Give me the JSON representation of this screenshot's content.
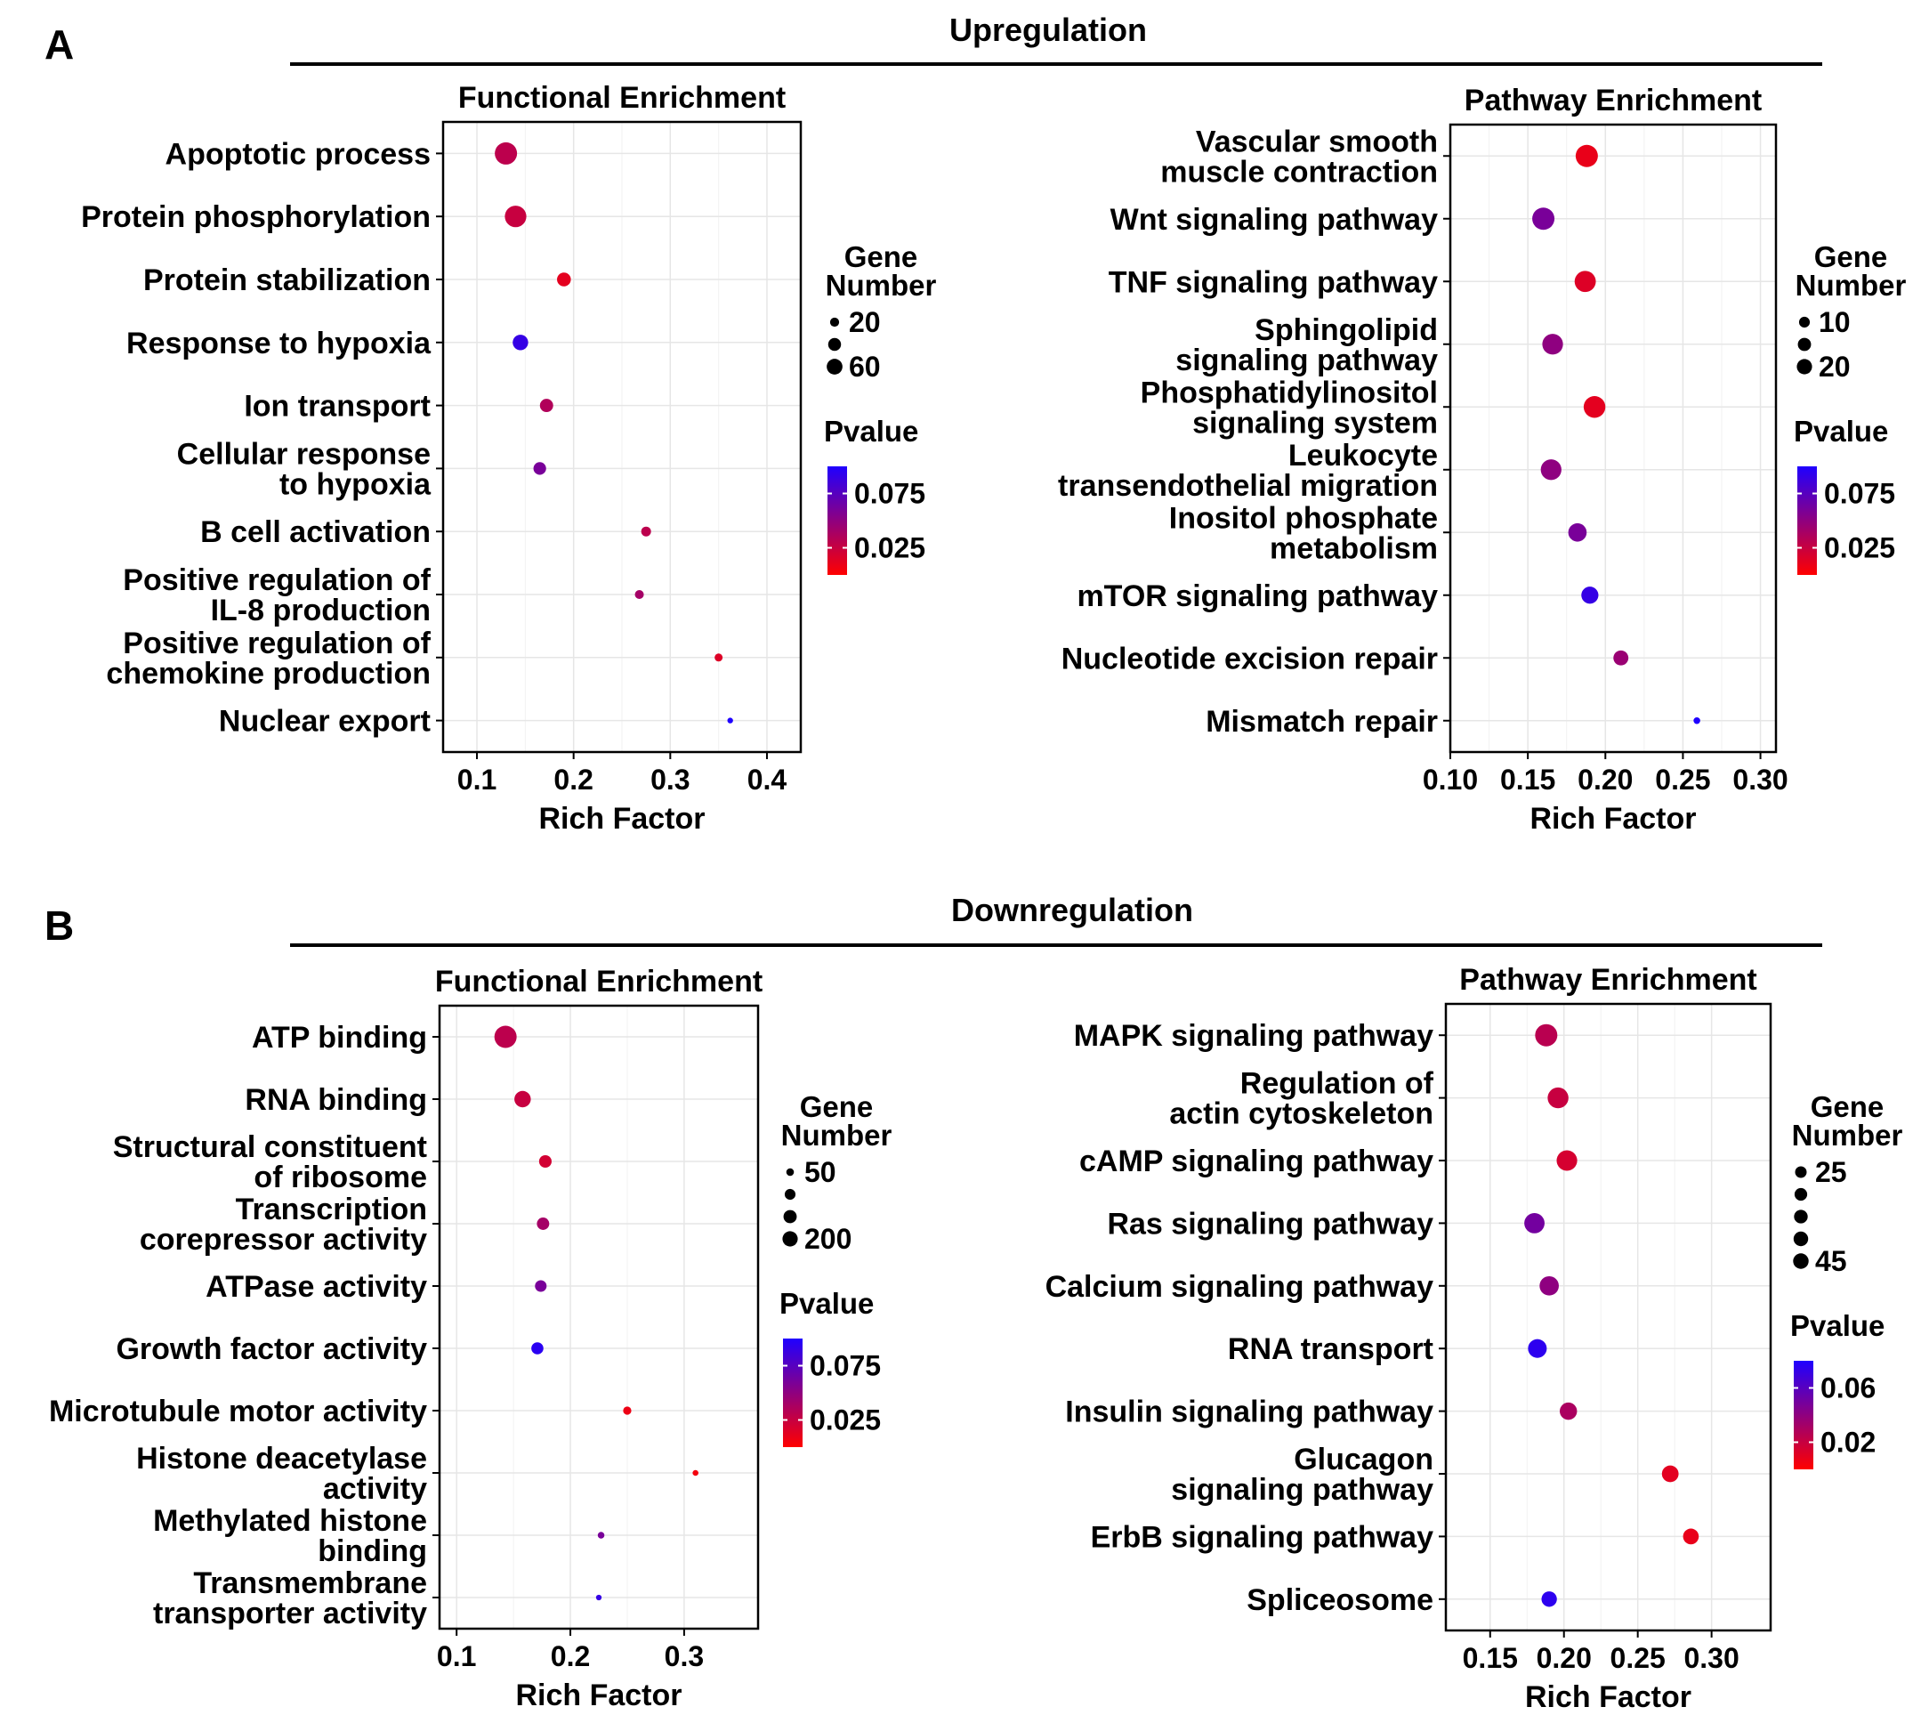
{
  "sections": [
    {
      "letter": "A",
      "title": "Upregulation",
      "panels": [
        {
          "id": "up-functional",
          "chart_data": {
            "type": "scatter",
            "title": "Functional Enrichment",
            "xlabel": "Rich Factor",
            "xlim": [
              0.065,
              0.435
            ],
            "xticks": [
              0.1,
              0.2,
              0.3,
              0.4
            ],
            "xtick_labels": [
              "0.1",
              "0.2",
              "0.3",
              "0.4"
            ],
            "categories": [
              [
                "Apoptotic process"
              ],
              [
                "Protein phosphorylation"
              ],
              [
                "Protein stabilization"
              ],
              [
                "Response to hypoxia"
              ],
              [
                "Ion transport"
              ],
              [
                "Cellular response",
                "to hypoxia"
              ],
              [
                "B cell activation"
              ],
              [
                "Positive regulation of",
                "IL-8 production"
              ],
              [
                "Positive regulation of",
                "chemokine production"
              ],
              [
                "Nuclear export"
              ]
            ],
            "rich_factor": [
              0.13,
              0.14,
              0.19,
              0.145,
              0.172,
              0.165,
              0.275,
              0.268,
              0.35,
              0.362
            ],
            "gene_number": [
              62,
              58,
              24,
              30,
              22,
              20,
              12,
              10,
              8,
              4
            ],
            "pvalue": [
              0.03,
              0.025,
              0.012,
              0.09,
              0.035,
              0.06,
              0.03,
              0.04,
              0.015,
              0.1
            ],
            "size_legend": {
              "title": [
                "Gene",
                "Number"
              ],
              "values": [
                20,
                40,
                60
              ],
              "labels": [
                "20",
                "",
                "60"
              ]
            },
            "color_legend": {
              "title": "Pvalue",
              "min": 0.0,
              "max": 0.1,
              "ticks": [
                0.075,
                0.025
              ],
              "tick_labels": [
                "0.075",
                "0.025"
              ]
            }
          }
        },
        {
          "id": "up-pathway",
          "chart_data": {
            "type": "scatter",
            "title": "Pathway Enrichment",
            "xlabel": "Rich Factor",
            "xlim": [
              0.1,
              0.31
            ],
            "xticks": [
              0.1,
              0.15,
              0.2,
              0.25,
              0.3
            ],
            "xtick_labels": [
              "0.10",
              "0.15",
              "0.20",
              "0.25",
              "0.30"
            ],
            "categories": [
              [
                "Vascular smooth",
                "muscle contraction"
              ],
              [
                "Wnt signaling pathway"
              ],
              [
                "TNF signaling pathway"
              ],
              [
                "Sphingolipid",
                "signaling pathway"
              ],
              [
                "Phosphatidylinositol",
                "signaling system"
              ],
              [
                "Leukocyte",
                "transendothelial migration"
              ],
              [
                "Inositol phosphate",
                "metabolism"
              ],
              [
                "mTOR signaling pathway"
              ],
              [
                "Nucleotide excision repair"
              ],
              [
                "Mismatch repair"
              ]
            ],
            "rich_factor": [
              0.188,
              0.16,
              0.187,
              0.166,
              0.193,
              0.165,
              0.182,
              0.19,
              0.21,
              0.259
            ],
            "gene_number": [
              22,
              22,
              20,
              19,
              21,
              19,
              15,
              13,
              10,
              2
            ],
            "pvalue": [
              0.01,
              0.06,
              0.015,
              0.05,
              0.012,
              0.05,
              0.06,
              0.09,
              0.045,
              0.1
            ],
            "size_legend": {
              "title": [
                "Gene",
                "Number"
              ],
              "values": [
                10,
                15,
                20
              ],
              "labels": [
                "10",
                "",
                "20"
              ]
            },
            "color_legend": {
              "title": "Pvalue",
              "min": 0.0,
              "max": 0.1,
              "ticks": [
                0.075,
                0.025
              ],
              "tick_labels": [
                "0.075",
                "0.025"
              ]
            }
          }
        }
      ]
    },
    {
      "letter": "B",
      "title": "Downregulation",
      "panels": [
        {
          "id": "down-functional",
          "chart_data": {
            "type": "scatter",
            "title": "Functional Enrichment",
            "xlabel": "Rich Factor",
            "xlim": [
              0.085,
              0.365
            ],
            "xticks": [
              0.1,
              0.2,
              0.3
            ],
            "xtick_labels": [
              "0.1",
              "0.2",
              "0.3"
            ],
            "categories": [
              [
                "ATP binding"
              ],
              [
                "RNA binding"
              ],
              [
                "Structural constituent",
                "of ribosome"
              ],
              [
                "Transcription",
                "corepressor activity"
              ],
              [
                "ATPase activity"
              ],
              [
                "Growth factor activity"
              ],
              [
                "Microtubule motor activity"
              ],
              [
                "Histone deacetylase",
                "activity"
              ],
              [
                "Methylated histone",
                "binding"
              ],
              [
                "Transmembrane",
                "transporter activity"
              ]
            ],
            "rich_factor": [
              0.143,
              0.158,
              0.178,
              0.176,
              0.174,
              0.171,
              0.25,
              0.31,
              0.227,
              0.225
            ],
            "gene_number": [
              220,
              120,
              70,
              68,
              60,
              65,
              30,
              15,
              20,
              14
            ],
            "pvalue": [
              0.03,
              0.025,
              0.02,
              0.04,
              0.06,
              0.095,
              0.008,
              0.005,
              0.06,
              0.09
            ],
            "size_legend": {
              "title": [
                "Gene",
                "Number"
              ],
              "values": [
                50,
                100,
                150,
                200
              ],
              "labels": [
                "50",
                "",
                "",
                "200"
              ]
            },
            "color_legend": {
              "title": "Pvalue",
              "min": 0.0,
              "max": 0.1,
              "ticks": [
                0.075,
                0.025
              ],
              "tick_labels": [
                "0.075",
                "0.025"
              ]
            }
          }
        },
        {
          "id": "down-pathway",
          "chart_data": {
            "type": "scatter",
            "title": "Pathway Enrichment",
            "xlabel": "Rich Factor",
            "xlim": [
              0.12,
              0.34
            ],
            "xticks": [
              0.15,
              0.2,
              0.25,
              0.3
            ],
            "xtick_labels": [
              "0.15",
              "0.20",
              "0.25",
              "0.30"
            ],
            "categories": [
              [
                "MAPK signaling pathway"
              ],
              [
                "Regulation of",
                "actin cytoskeleton"
              ],
              [
                "cAMP signaling pathway"
              ],
              [
                "Ras signaling pathway"
              ],
              [
                "Calcium signaling pathway"
              ],
              [
                "RNA transport"
              ],
              [
                "Insulin signaling pathway"
              ],
              [
                "Glucagon",
                "signaling pathway"
              ],
              [
                "ErbB signaling pathway"
              ],
              [
                "Spliceosome"
              ]
            ],
            "rich_factor": [
              0.188,
              0.196,
              0.202,
              0.18,
              0.19,
              0.182,
              0.203,
              0.272,
              0.286,
              0.19
            ],
            "gene_number": [
              48,
              42,
              41,
              40,
              36,
              34,
              29,
              27,
              24,
              23
            ],
            "pvalue": [
              0.025,
              0.02,
              0.015,
              0.05,
              0.04,
              0.075,
              0.03,
              0.01,
              0.008,
              0.075
            ],
            "size_legend": {
              "title": [
                "Gene",
                "Number"
              ],
              "values": [
                25,
                30,
                35,
                40,
                45
              ],
              "labels": [
                "25",
                "",
                "",
                "",
                "45"
              ]
            },
            "color_legend": {
              "title": "Pvalue",
              "min": 0.0,
              "max": 0.08,
              "ticks": [
                0.06,
                0.02
              ],
              "tick_labels": [
                "0.06",
                "0.02"
              ]
            }
          }
        }
      ]
    }
  ]
}
